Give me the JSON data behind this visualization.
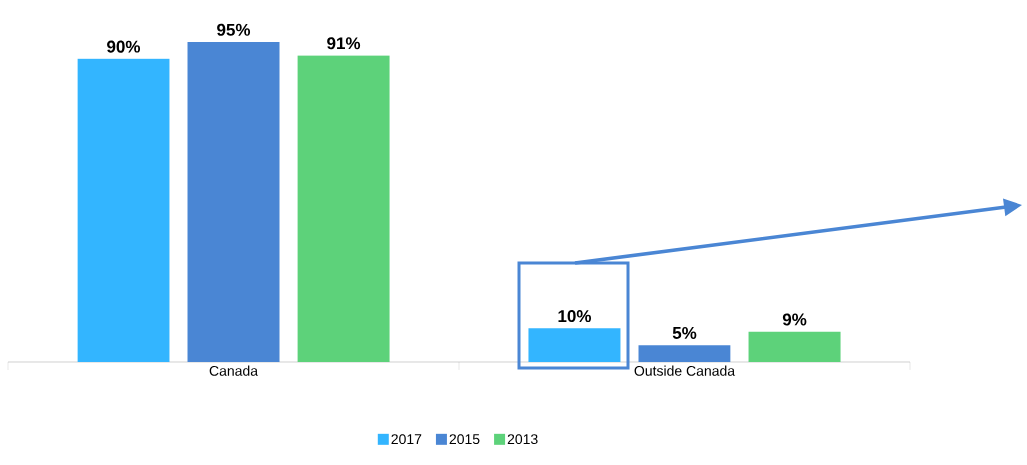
{
  "chart_data": {
    "type": "bar",
    "categories": [
      "Canada",
      "Outside Canada"
    ],
    "series": [
      {
        "name": "2017",
        "color": "#33b5ff",
        "values": [
          90,
          10
        ],
        "value_labels": [
          "90%",
          "10%"
        ]
      },
      {
        "name": "2015",
        "color": "#4a86d4",
        "values": [
          95,
          5
        ],
        "value_labels": [
          "95%",
          "5%"
        ]
      },
      {
        "name": "2013",
        "color": "#5dd27a",
        "values": [
          91,
          9
        ],
        "value_labels": [
          "91%",
          "9%"
        ]
      }
    ],
    "legend": "bottom"
  }
}
